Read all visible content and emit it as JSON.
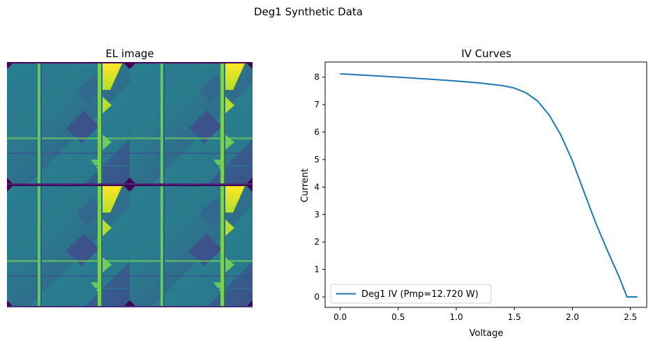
{
  "figure": {
    "suptitle": "Deg1 Synthetic Data"
  },
  "panels": {
    "image_title": "EL image",
    "plot_title": "IV Curves"
  },
  "colors": {
    "line": "#1f77b4",
    "viridis_dark": "#440154",
    "viridis_blue": "#3b528b",
    "viridis_teal": "#21918c",
    "viridis_green": "#5ec962",
    "viridis_yellow": "#fde725"
  },
  "chart_data": [
    {
      "type": "line",
      "title": "IV Curves",
      "xlabel": "Voltage",
      "ylabel": "Current",
      "xlim": [
        -0.13,
        2.64
      ],
      "ylim": [
        -0.38,
        8.55
      ],
      "xticks": [
        "0.0",
        "0.5",
        "1.0",
        "1.5",
        "2.0",
        "2.5"
      ],
      "yticks": [
        "0",
        "1",
        "2",
        "3",
        "4",
        "5",
        "6",
        "7",
        "8"
      ],
      "grid": false,
      "legend": "lower-left",
      "series": [
        {
          "name": "Deg1 IV (Pmp=12.720 W)",
          "x": [
            0.0,
            0.25,
            0.5,
            0.75,
            1.0,
            1.2,
            1.4,
            1.5,
            1.6,
            1.7,
            1.8,
            1.9,
            2.0,
            2.1,
            2.2,
            2.3,
            2.4,
            2.47,
            2.56
          ],
          "y": [
            8.12,
            8.06,
            8.0,
            7.93,
            7.86,
            7.79,
            7.69,
            7.6,
            7.43,
            7.13,
            6.62,
            5.9,
            4.95,
            3.82,
            2.7,
            1.7,
            0.75,
            0.0,
            0.0
          ]
        }
      ]
    }
  ]
}
